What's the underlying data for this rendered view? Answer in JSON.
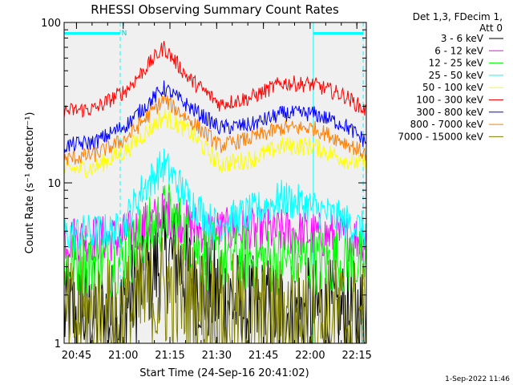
{
  "chart_data": {
    "type": "line",
    "title": "RHESSI Observing Summary Count Rates",
    "xlabel": "Start Time (24-Sep-16 20:41:02)",
    "ylabel": "Count Rate (s⁻¹ detector⁻¹)",
    "y_scale": "log",
    "ylim": [
      1,
      100
    ],
    "xlim_minutes_since_start": [
      0,
      97
    ],
    "x_tick_labels": [
      "20:45",
      "21:00",
      "21:15",
      "21:30",
      "21:45",
      "22:00",
      "22:15"
    ],
    "x_tick_minutes_since_start": [
      3.97,
      18.97,
      33.97,
      48.97,
      63.97,
      78.97,
      93.97
    ],
    "y_tick_labels": [
      "1",
      "10",
      "100"
    ],
    "y_ticks": [
      1,
      10,
      100
    ],
    "legend_header": [
      "Det 1,3, FDecim 1,",
      "Att 0"
    ],
    "legend_position": "right",
    "annotations": {
      "night_marker": "N"
    },
    "event_bars": {
      "cyan": [
        [
          0,
          18
        ],
        [
          80,
          96
        ]
      ]
    },
    "dashed_verticals_minutes": [
      18,
      96
    ],
    "solid_vertical_minutes": [
      80
    ],
    "series": [
      {
        "name": "3 - 6 keV",
        "color": "#000000",
        "profile": [
          [
            0,
            1.5
          ],
          [
            18,
            1.5
          ],
          [
            25,
            2.5
          ],
          [
            34,
            3.5
          ],
          [
            45,
            2.2
          ],
          [
            60,
            1.6
          ],
          [
            97,
            1.5
          ]
        ],
        "noise": 0.35
      },
      {
        "name": "6 - 12 keV",
        "color": "#ff00ff",
        "profile": [
          [
            0,
            4.5
          ],
          [
            18,
            4.5
          ],
          [
            33,
            6.5
          ],
          [
            45,
            5
          ],
          [
            65,
            5
          ],
          [
            97,
            4.5
          ]
        ],
        "noise": 0.15
      },
      {
        "name": "12 - 25 keV",
        "color": "#00ff00",
        "profile": [
          [
            0,
            3.2
          ],
          [
            18,
            3.2
          ],
          [
            25,
            4.5
          ],
          [
            33,
            6.5
          ],
          [
            45,
            3.5
          ],
          [
            65,
            3.3
          ],
          [
            97,
            3.2
          ]
        ],
        "noise": 0.22
      },
      {
        "name": "25 - 50 keV",
        "color": "#00ffff",
        "profile": [
          [
            0,
            4.8
          ],
          [
            18,
            5
          ],
          [
            25,
            9
          ],
          [
            32,
            13
          ],
          [
            40,
            8
          ],
          [
            48,
            5.5
          ],
          [
            60,
            6.5
          ],
          [
            70,
            8
          ],
          [
            80,
            7
          ],
          [
            97,
            5
          ]
        ],
        "noise": 0.12
      },
      {
        "name": "50 - 100 keV",
        "color": "#ffff00",
        "profile": [
          [
            0,
            12
          ],
          [
            10,
            12.5
          ],
          [
            20,
            16
          ],
          [
            32,
            26
          ],
          [
            40,
            21
          ],
          [
            50,
            13
          ],
          [
            60,
            14
          ],
          [
            70,
            17
          ],
          [
            80,
            17
          ],
          [
            90,
            14
          ],
          [
            97,
            13
          ]
        ],
        "noise": 0.06
      },
      {
        "name": "100 - 300 keV",
        "color": "#ff0000",
        "profile": [
          [
            0,
            28
          ],
          [
            10,
            29
          ],
          [
            20,
            38
          ],
          [
            32,
            70
          ],
          [
            40,
            45
          ],
          [
            50,
            31
          ],
          [
            60,
            34
          ],
          [
            70,
            42
          ],
          [
            80,
            41
          ],
          [
            90,
            35
          ],
          [
            97,
            28
          ]
        ],
        "noise": 0.05
      },
      {
        "name": "300 - 800 keV",
        "color": "#0000ff",
        "profile": [
          [
            0,
            17
          ],
          [
            10,
            18
          ],
          [
            20,
            23
          ],
          [
            32,
            39
          ],
          [
            40,
            30
          ],
          [
            50,
            22
          ],
          [
            60,
            23
          ],
          [
            70,
            27
          ],
          [
            80,
            27
          ],
          [
            90,
            23
          ],
          [
            97,
            18
          ]
        ],
        "noise": 0.05
      },
      {
        "name": "800 - 7000 keV",
        "color": "#ff8000",
        "profile": [
          [
            0,
            14
          ],
          [
            10,
            15
          ],
          [
            20,
            19
          ],
          [
            32,
            33
          ],
          [
            40,
            25
          ],
          [
            50,
            17
          ],
          [
            60,
            19
          ],
          [
            70,
            22
          ],
          [
            80,
            22
          ],
          [
            90,
            18
          ],
          [
            97,
            15
          ]
        ],
        "noise": 0.05
      },
      {
        "name": "7000 - 15000 keV",
        "color": "#808000",
        "profile": [
          [
            0,
            1.4
          ],
          [
            18,
            1.4
          ],
          [
            25,
            1.8
          ],
          [
            33,
            2.2
          ],
          [
            45,
            1.6
          ],
          [
            60,
            1.4
          ],
          [
            97,
            1.4
          ]
        ],
        "noise": 0.4
      }
    ]
  },
  "footer": {
    "timestamp": "1-Sep-2022 11:46"
  }
}
